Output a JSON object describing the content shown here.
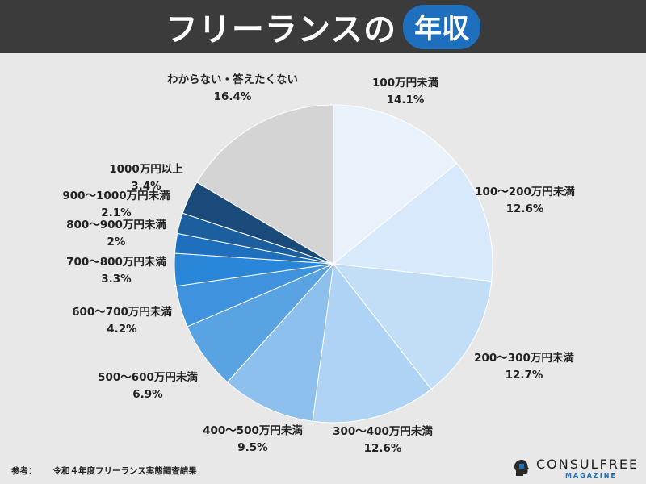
{
  "header": {
    "title": "フリーランスの",
    "title_highlight": "年収"
  },
  "footer": {
    "ref_label": "参考：",
    "ref_text": "令和４年度フリーランス実態調査結果"
  },
  "brand": {
    "name": "CONSULFREE",
    "sub": "MAGAZINE"
  },
  "chart_data": {
    "type": "pie",
    "title": "",
    "start_angle_deg": 0,
    "direction": "clockwise",
    "slices": [
      {
        "label": "100万円未満",
        "value": 14.1,
        "display": "14.1%",
        "color": "#e9f1fa"
      },
      {
        "label": "100〜200万円未満",
        "value": 12.6,
        "display": "12.6%",
        "color": "#d7e9fb"
      },
      {
        "label": "200〜300万円未満",
        "value": 12.7,
        "display": "12.7%",
        "color": "#c2ddf6"
      },
      {
        "label": "300〜400万円未満",
        "value": 12.6,
        "display": "12.6%",
        "color": "#aed3f4"
      },
      {
        "label": "400〜500万円未満",
        "value": 9.5,
        "display": "9.5%",
        "color": "#8dc0ec"
      },
      {
        "label": "500〜600万円未満",
        "value": 6.9,
        "display": "6.9%",
        "color": "#5aa3e3"
      },
      {
        "label": "600〜700万円未満",
        "value": 4.2,
        "display": "4.2%",
        "color": "#3f92de"
      },
      {
        "label": "700〜800万円未満",
        "value": 3.3,
        "display": "3.3%",
        "color": "#2a86d9"
      },
      {
        "label": "800〜900万円未満",
        "value": 2,
        "display": "2%",
        "color": "#1f6fbf"
      },
      {
        "label": "900〜1000万円未満",
        "value": 2.1,
        "display": "2.1%",
        "color": "#1c5f9e"
      },
      {
        "label": "1000万円以上",
        "value": 3.4,
        "display": "3.4%",
        "color": "#1a4a7a"
      },
      {
        "label": "わからない・答えたくない",
        "value": 16.4,
        "display": "16.4%",
        "color": "#d4d4d4"
      }
    ]
  }
}
